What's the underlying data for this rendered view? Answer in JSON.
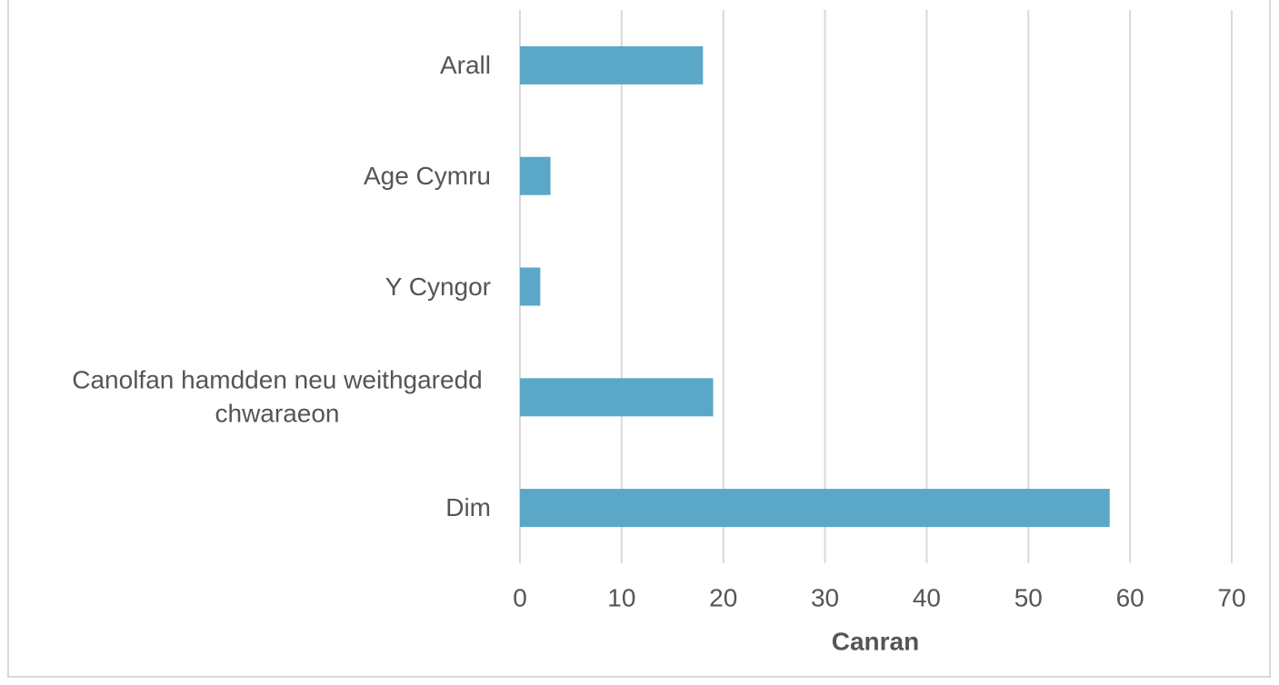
{
  "chart_data": {
    "type": "bar",
    "orientation": "horizontal",
    "categories": [
      "Arall",
      "Age Cymru",
      "Y Cyngor",
      "Canolfan hamdden neu weithgaredd chwaraeon",
      "Dim"
    ],
    "values": [
      18,
      3,
      2,
      19,
      58
    ],
    "color": "#5ba7c8",
    "xlim": [
      0,
      70
    ],
    "xticks": [
      0,
      10,
      20,
      30,
      40,
      50,
      60,
      70
    ],
    "x_label": "Canran",
    "grid": true
  }
}
